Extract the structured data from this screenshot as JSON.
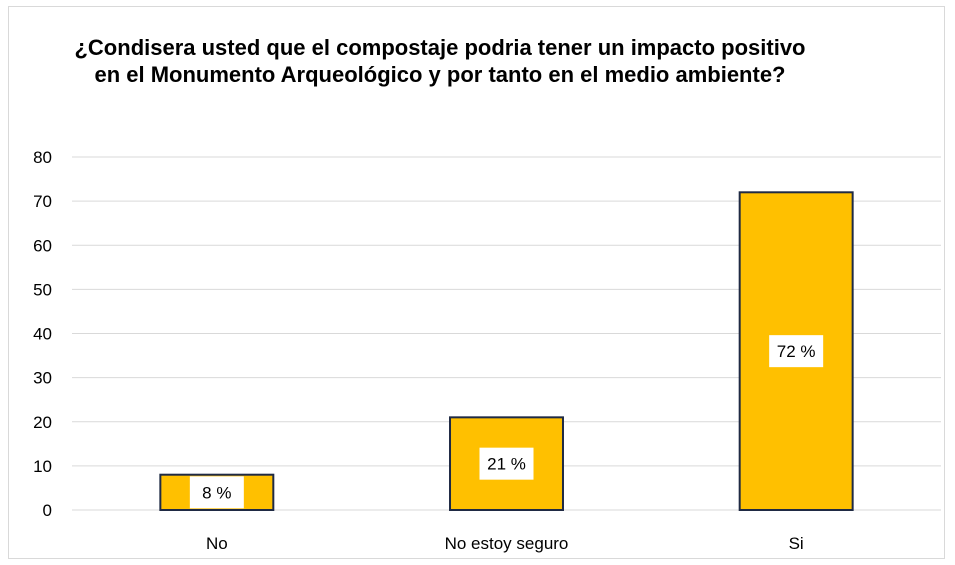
{
  "chart_data": {
    "type": "bar",
    "title": "¿Condisera usted que el compostaje podria tener un impacto positivo en el Monumento Arqueológico y por tanto en el medio ambiente?",
    "categories": [
      "No",
      "No estoy seguro",
      "Si"
    ],
    "values": [
      8,
      21,
      72
    ],
    "data_labels": [
      "8  %",
      "21 %",
      "72 %"
    ],
    "xlabel": "",
    "ylabel": "",
    "ylim": [
      0,
      80
    ],
    "yticks": [
      0,
      10,
      20,
      30,
      40,
      50,
      60,
      70,
      80
    ],
    "grid": true,
    "legend": "none",
    "colors": {
      "bar_fill": "#FFC000",
      "bar_stroke": "#1F2A44",
      "gridline": "#D9D9D9",
      "label_box": "#FFFFFF"
    }
  }
}
